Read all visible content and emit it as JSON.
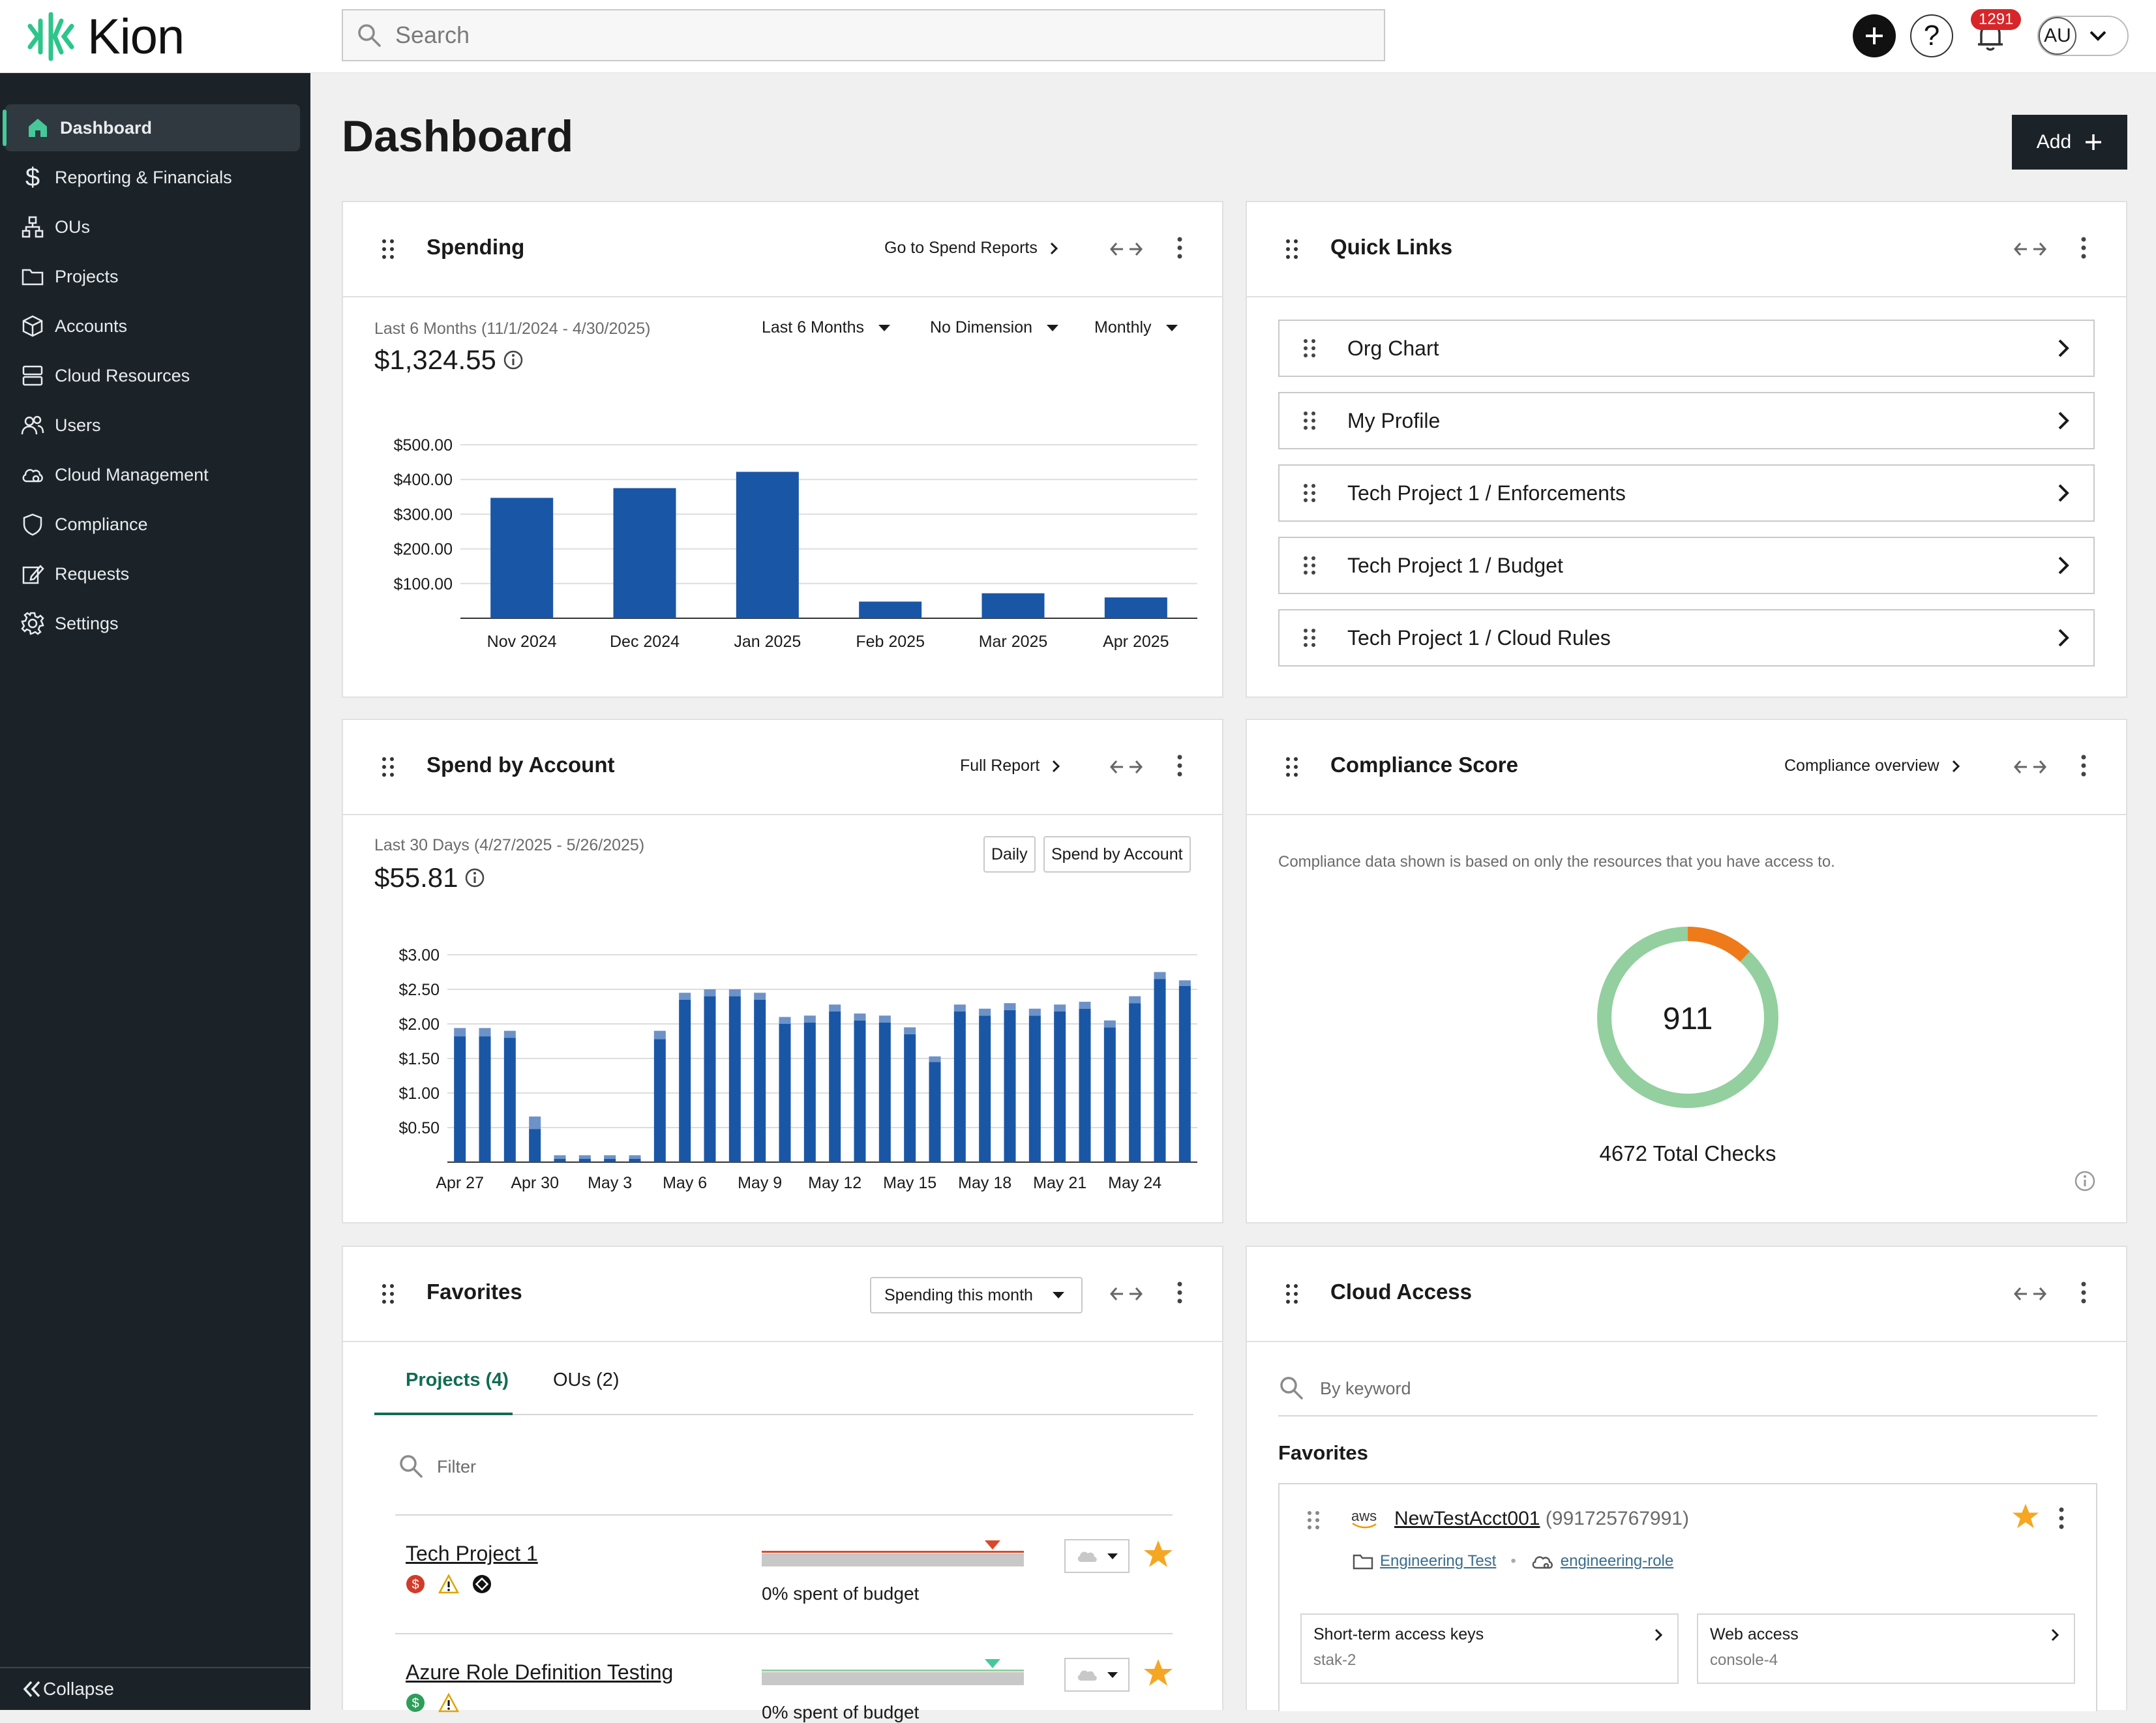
{
  "app": {
    "logo_text": "Kion"
  },
  "search": {
    "placeholder": "Search"
  },
  "header": {
    "notification_count": "1291",
    "user_initials": "AU",
    "help_label": "?"
  },
  "sidebar": {
    "items": [
      {
        "label": "Dashboard",
        "icon": "home-icon",
        "active": true
      },
      {
        "label": "Reporting & Financials",
        "icon": "dollar-icon"
      },
      {
        "label": "OUs",
        "icon": "org-tree-icon"
      },
      {
        "label": "Projects",
        "icon": "folder-icon"
      },
      {
        "label": "Accounts",
        "icon": "cube-icon"
      },
      {
        "label": "Cloud Resources",
        "icon": "server-icon"
      },
      {
        "label": "Users",
        "icon": "users-icon"
      },
      {
        "label": "Cloud Management",
        "icon": "cloud-gear-icon"
      },
      {
        "label": "Compliance",
        "icon": "shield-icon"
      },
      {
        "label": "Requests",
        "icon": "edit-icon"
      },
      {
        "label": "Settings",
        "icon": "gear-icon"
      }
    ],
    "collapse_label": "Collapse"
  },
  "page": {
    "title": "Dashboard",
    "add_label": "Add"
  },
  "spending": {
    "title": "Spending",
    "link": "Go to Spend Reports",
    "range_text": "Last 6 Months (11/1/2024 - 4/30/2025)",
    "amount": "$1,324.55",
    "filters": [
      "Last 6 Months",
      "No Dimension",
      "Monthly"
    ]
  },
  "quick_links": {
    "title": "Quick Links",
    "items": [
      "Org Chart",
      "My Profile",
      "Tech Project 1 / Enforcements",
      "Tech Project 1 / Budget",
      "Tech Project 1 / Cloud Rules"
    ]
  },
  "spend_by_account": {
    "title": "Spend by Account",
    "link": "Full Report",
    "range_text": "Last 30 Days (4/27/2025 - 5/26/2025)",
    "amount": "$55.81",
    "buttons": [
      "Daily",
      "Spend by Account"
    ]
  },
  "compliance": {
    "title": "Compliance Score",
    "link": "Compliance overview",
    "note": "Compliance data shown is based on only the resources that you have access to.",
    "score": "911",
    "total_label": "4672 Total Checks",
    "passing_color": "#93cf9f",
    "failing_color": "#ef7a1a",
    "failing_fraction": 0.12
  },
  "favorites": {
    "title": "Favorites",
    "dropdown": "Spending this month",
    "tabs": [
      "Projects (4)",
      "OUs (2)"
    ],
    "filter_placeholder": "Filter",
    "rows": [
      {
        "name": "Tech Project 1",
        "budget_text": "0% spent of budget",
        "marker_color": "#d9482b",
        "line_color": "#d9482b"
      },
      {
        "name": "Azure Role Definition Testing",
        "budget_text": "0% spent of budget",
        "marker_color": "#46c89a",
        "line_color": "#93cf9f"
      }
    ]
  },
  "cloud_access": {
    "title": "Cloud Access",
    "search_placeholder": "By keyword",
    "favorites_label": "Favorites",
    "account": {
      "provider": "aws",
      "name": "NewTestAcct001",
      "id": "(991725767991)",
      "project": "Engineering Test",
      "role": "engineering-role"
    },
    "access": [
      {
        "label": "Short-term access keys",
        "sub": "stak-2"
      },
      {
        "label": "Web access",
        "sub": "console-4"
      }
    ]
  },
  "chart_data": [
    {
      "type": "bar",
      "title": "",
      "xlabel": "",
      "ylabel": "",
      "categories": [
        "Nov 2024",
        "Dec 2024",
        "Jan 2025",
        "Feb 2025",
        "Mar 2025",
        "Apr 2025"
      ],
      "values": [
        347,
        375,
        422,
        48,
        72,
        60
      ],
      "yticks": [
        "$100.00",
        "$200.00",
        "$300.00",
        "$400.00",
        "$500.00"
      ],
      "ylim": [
        0,
        500
      ],
      "grid": true,
      "color": "#1a56a6"
    },
    {
      "type": "bar",
      "title": "",
      "xlabel": "",
      "ylabel": "",
      "x": [
        "Apr 27",
        "Apr 28",
        "Apr 29",
        "Apr 30",
        "May 1",
        "May 2",
        "May 3",
        "May 4",
        "May 5",
        "May 6",
        "May 7",
        "May 8",
        "May 9",
        "May 10",
        "May 11",
        "May 12",
        "May 13",
        "May 14",
        "May 15",
        "May 16",
        "May 17",
        "May 18",
        "May 19",
        "May 20",
        "May 21",
        "May 22",
        "May 23",
        "May 24",
        "May 25",
        "May 26"
      ],
      "xtick_labels": [
        "Apr 27",
        "Apr 30",
        "May 3",
        "May 6",
        "May 9",
        "May 12",
        "May 15",
        "May 18",
        "May 21",
        "May 24"
      ],
      "series": [
        {
          "values": [
            1.82,
            1.82,
            1.8,
            0.48,
            0.05,
            0.05,
            0.05,
            0.05,
            1.78,
            2.35,
            2.4,
            2.4,
            2.35,
            2.0,
            2.02,
            2.18,
            2.05,
            2.02,
            1.85,
            1.45,
            2.18,
            2.12,
            2.2,
            2.12,
            2.18,
            2.22,
            1.95,
            2.3,
            2.65,
            2.55
          ],
          "color": "#1a56a6"
        },
        {
          "values": [
            0.12,
            0.12,
            0.1,
            0.18,
            0.05,
            0.05,
            0.05,
            0.05,
            0.12,
            0.1,
            0.1,
            0.1,
            0.1,
            0.1,
            0.1,
            0.1,
            0.1,
            0.1,
            0.1,
            0.08,
            0.1,
            0.1,
            0.1,
            0.1,
            0.1,
            0.1,
            0.1,
            0.1,
            0.1,
            0.08
          ],
          "color": "#6c92c8"
        }
      ],
      "yticks": [
        "$0.50",
        "$1.00",
        "$1.50",
        "$2.00",
        "$2.50",
        "$3.00"
      ],
      "ylim": [
        0,
        3
      ],
      "grid": true
    }
  ]
}
